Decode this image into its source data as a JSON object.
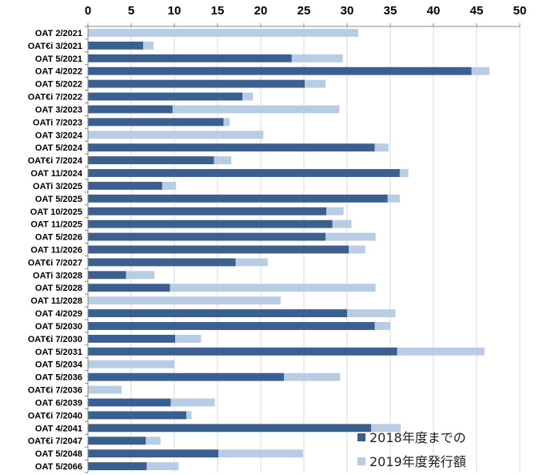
{
  "chart_data": {
    "type": "bar",
    "orientation": "horizontal",
    "stacked": true,
    "xlim": [
      0,
      50
    ],
    "xticks": [
      0,
      5,
      10,
      15,
      20,
      25,
      30,
      35,
      40,
      45,
      50
    ],
    "x_axis_position": "top",
    "grid": true,
    "legend_position": "bottom-right",
    "categories": [
      "OAT 2/2021",
      "OAT€i 3/2021",
      "OAT 5/2021",
      "OAT 4/2022",
      "OAT 5/2022",
      "OAT€i 7/2022",
      "OAT 3/2023",
      "OATi 7/2023",
      "OAT 3/2024",
      "OAT 5/2024",
      "OAT€i 7/2024",
      "OAT 11/2024",
      "OATi 3/2025",
      "OAT 5/2025",
      "OAT 10/2025",
      "OAT 11/2025",
      "OAT 5/2026",
      "OAT 11/2026",
      "OAT€i 7/2027",
      "OATi 3/2028",
      "OAT 5/2028",
      "OAT 11/2028",
      "OAT 4/2029",
      "OAT 5/2030",
      "OAT€i 7/2030",
      "OAT 5/2031",
      "OAT 5/2034",
      "OAT 5/2036",
      "OAT€i 7/2036",
      "OAT 6/2039",
      "OAT€i 7/2040",
      "OAT 4/2041",
      "OAT€i 7/2047",
      "OAT 5/2048",
      "OAT 5/2066"
    ],
    "series": [
      {
        "name": "2018年度までの",
        "color": "#3B5F8E",
        "values": [
          0,
          6.4,
          23.6,
          44.4,
          25.1,
          17.9,
          9.8,
          15.7,
          0,
          33.2,
          14.6,
          36.1,
          8.6,
          34.7,
          27.6,
          28.3,
          27.5,
          30.2,
          17.1,
          4.4,
          9.5,
          0,
          30.0,
          33.2,
          10.1,
          35.8,
          0,
          22.7,
          0,
          9.6,
          11.4,
          32.8,
          6.7,
          15.1,
          6.8
        ]
      },
      {
        "name": "2019年度発行額",
        "color": "#B8CCE4",
        "values": [
          31.3,
          1.2,
          5.9,
          2.1,
          2.4,
          1.2,
          19.3,
          0.7,
          20.3,
          1.6,
          2.0,
          1.0,
          1.6,
          1.4,
          2.0,
          2.2,
          5.8,
          1.9,
          3.7,
          3.3,
          23.8,
          22.3,
          5.6,
          1.8,
          3.0,
          10.1,
          10.0,
          6.5,
          3.9,
          5.1,
          0.6,
          3.4,
          1.7,
          9.8,
          3.7
        ]
      }
    ]
  }
}
